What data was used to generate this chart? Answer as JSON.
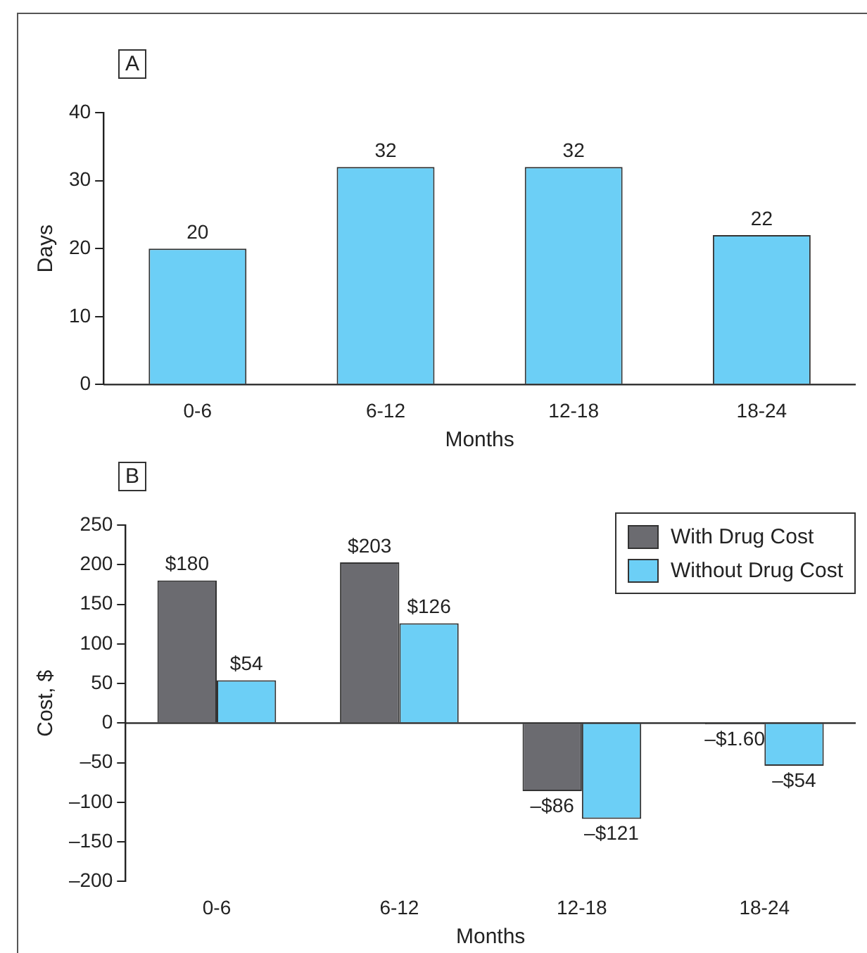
{
  "chart_data": [
    {
      "type": "bar",
      "title": "A",
      "xlabel": "Months",
      "ylabel": "Days",
      "categories": [
        "0-6",
        "6-12",
        "12-18",
        "18-24"
      ],
      "values": [
        20,
        32,
        32,
        22
      ],
      "color": "#6ccff6",
      "ylim": [
        0,
        40
      ],
      "yticks": [
        0,
        10,
        20,
        30,
        40
      ],
      "data_labels": true
    },
    {
      "type": "bar",
      "title": "B",
      "xlabel": "Months",
      "ylabel": "Cost, $",
      "categories": [
        "0-6",
        "6-12",
        "12-18",
        "18-24"
      ],
      "legend": "top right",
      "series": [
        {
          "name": "With Drug Cost",
          "color": "#6b6b70",
          "values": [
            180,
            203,
            -86,
            -1.6
          ],
          "value_labels": [
            "$180",
            "$203",
            "–$86",
            "–$1.60"
          ]
        },
        {
          "name": "Without Drug Cost",
          "color": "#6ccff6",
          "values": [
            54,
            126,
            -121,
            -54
          ],
          "value_labels": [
            "$54",
            "$126",
            "–$121",
            "–$54"
          ]
        }
      ],
      "ylim": [
        -200,
        250
      ],
      "yticks": [
        {
          "value": -200,
          "label": "–200"
        },
        {
          "value": -150,
          "label": "–150"
        },
        {
          "value": -100,
          "label": "–100"
        },
        {
          "value": -50,
          "label": "–50"
        },
        0,
        50,
        100,
        150,
        200,
        250
      ]
    }
  ]
}
